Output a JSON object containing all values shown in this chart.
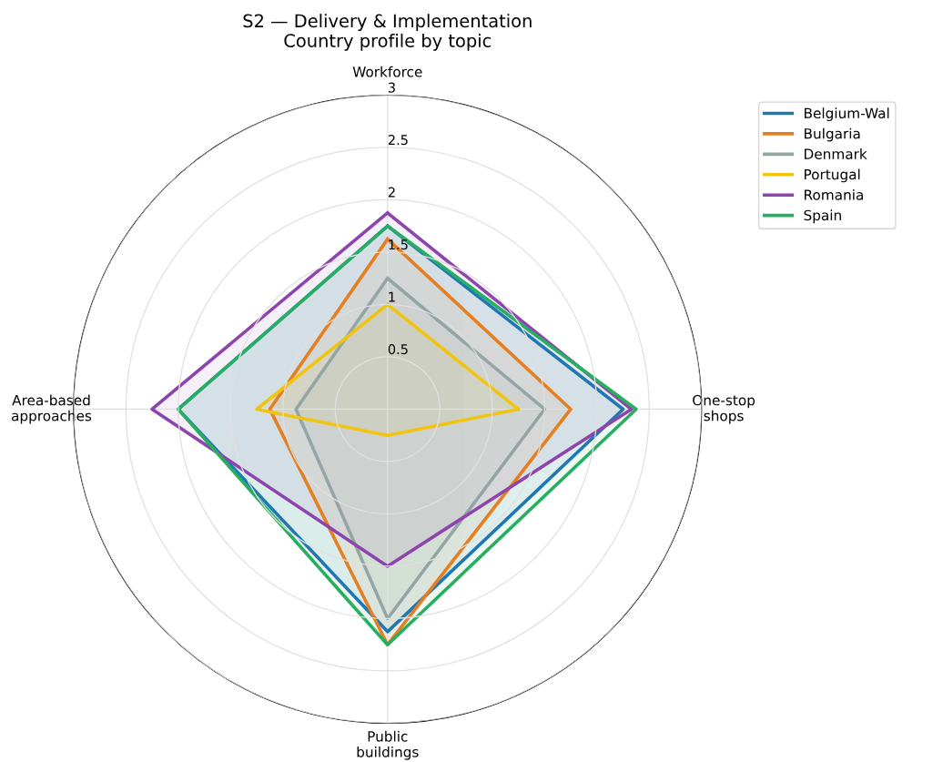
{
  "chart_data": {
    "type": "radar",
    "title": "S2 — Delivery & Implementation\nCountry profile by topic",
    "categories": [
      "Workforce",
      "One-stop\nshops",
      "Public\nbuildings",
      "Area-based\napproaches"
    ],
    "ylim": [
      0,
      3
    ],
    "yticks": [
      0.5,
      1,
      1.5,
      2,
      2.5,
      3
    ],
    "grid": true,
    "legend": "top right",
    "series": [
      {
        "name": "Belgium-Wal",
        "color": "#1f77b4",
        "values": [
          1.75,
          2.25,
          2.125,
          2.0
        ]
      },
      {
        "name": "Bulgaria",
        "color": "#e67e22",
        "values": [
          1.625,
          1.75,
          2.25,
          1.125
        ]
      },
      {
        "name": "Denmark",
        "color": "#95a5a6",
        "values": [
          1.25,
          1.5,
          2.0,
          0.875
        ]
      },
      {
        "name": "Portugal",
        "color": "#f1c40f",
        "values": [
          1.0,
          1.25,
          0.25,
          1.25
        ]
      },
      {
        "name": "Romania",
        "color": "#8e44ad",
        "values": [
          1.875,
          2.33,
          1.5,
          2.25
        ]
      },
      {
        "name": "Spain",
        "color": "#27ae60",
        "values": [
          1.75,
          2.375,
          2.25,
          2.0
        ]
      }
    ]
  }
}
